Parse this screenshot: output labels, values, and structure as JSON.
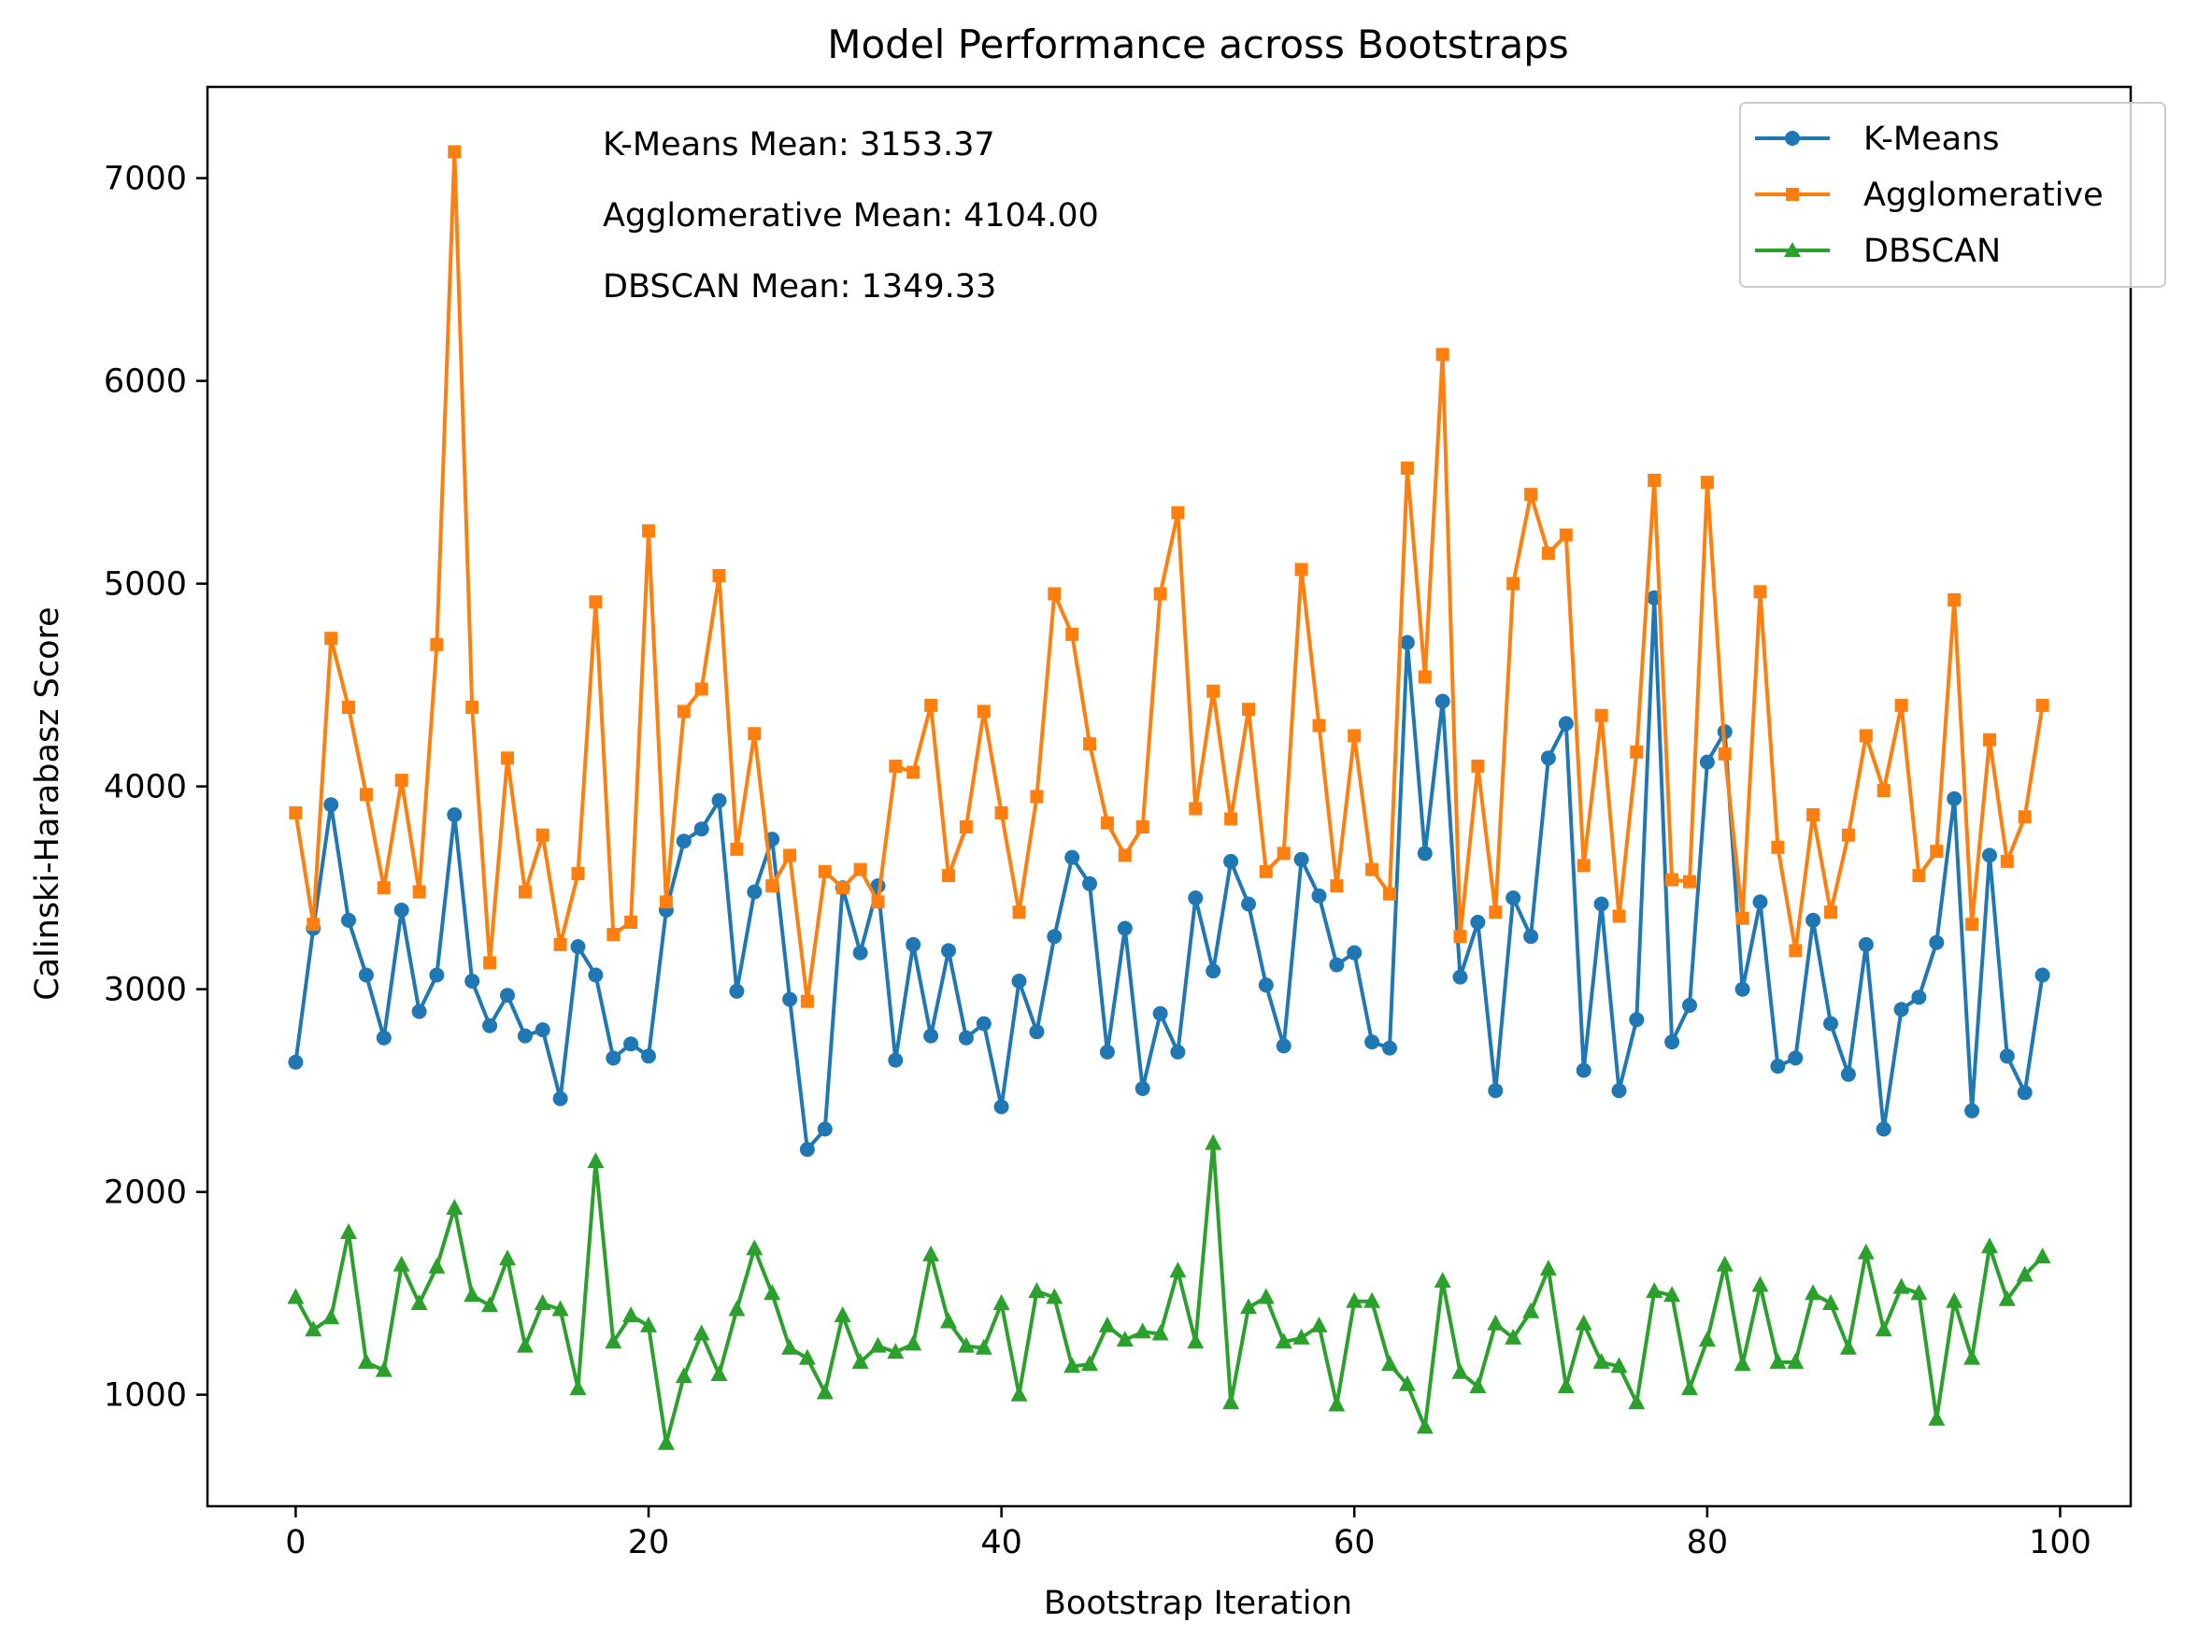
{
  "chart_data": {
    "type": "line",
    "title": "Model Performance across Bootstraps",
    "xlabel": "Bootstrap Iteration",
    "ylabel": "Calinski-Harabasz Score",
    "xlim": [
      -5,
      104
    ],
    "ylim": [
      450,
      7450
    ],
    "xticks": [
      0,
      20,
      40,
      60,
      80,
      100
    ],
    "yticks": [
      1000,
      2000,
      3000,
      4000,
      5000,
      6000,
      7000
    ],
    "grid": false,
    "legend_position": "top-right",
    "annotations": [
      "K-Means Mean: 3153.37",
      "Agglomerative Mean: 4104.00",
      "DBSCAN Mean: 1349.33"
    ],
    "series": [
      {
        "name": "K-Means",
        "color": "#1f77b4",
        "marker": "circle",
        "values": [
          2640,
          3300,
          3910,
          3340,
          3070,
          2760,
          3390,
          2890,
          3070,
          3860,
          3040,
          2820,
          2970,
          2770,
          2800,
          2460,
          3210,
          3070,
          2660,
          2730,
          2670,
          3390,
          3730,
          3790,
          3930,
          2990,
          3480,
          3740,
          2950,
          2210,
          2310,
          3500,
          3180,
          3510,
          2650,
          3220,
          2770,
          3190,
          2760,
          2830,
          2420,
          3040,
          2790,
          3260,
          3650,
          3520,
          2690,
          3300,
          2510,
          2880,
          2690,
          3450,
          3090,
          3630,
          3420,
          3020,
          2720,
          3640,
          3460,
          3120,
          3180,
          2740,
          2710,
          4710,
          3670,
          4420,
          3060,
          3330,
          2500,
          3450,
          3260,
          4140,
          4310,
          2600,
          3420,
          2500,
          2850,
          4930,
          2740,
          2920,
          4120,
          4270,
          3000,
          3430,
          2620,
          2660,
          3340,
          2830,
          2580,
          3220,
          2310,
          2900,
          2960,
          3230,
          3940,
          2400,
          3660,
          2670,
          2490,
          3070
        ]
      },
      {
        "name": "Agglomerative",
        "color": "#ff7f0e",
        "marker": "square",
        "values": [
          3870,
          3320,
          4730,
          4390,
          3960,
          3500,
          4030,
          3480,
          4700,
          7130,
          4390,
          3130,
          4140,
          3480,
          3760,
          3220,
          3570,
          4910,
          3270,
          3330,
          5260,
          3430,
          4370,
          4480,
          5040,
          3690,
          4260,
          3510,
          3660,
          2940,
          3580,
          3500,
          3590,
          3430,
          4100,
          4070,
          4400,
          3560,
          3800,
          4370,
          3870,
          3380,
          3950,
          4950,
          4750,
          4210,
          3820,
          3660,
          3800,
          4950,
          5350,
          3890,
          4470,
          3840,
          4380,
          3580,
          3670,
          5070,
          4300,
          3510,
          4250,
          3590,
          3470,
          5570,
          4540,
          6130,
          3260,
          4100,
          3380,
          5000,
          5440,
          5150,
          5240,
          3610,
          4350,
          3360,
          4170,
          5510,
          3540,
          3530,
          5500,
          4160,
          3350,
          4960,
          3700,
          3190,
          3860,
          3380,
          3760,
          4250,
          3980,
          4400,
          3560,
          3680,
          4920,
          3320,
          4230,
          3630,
          3850,
          4400
        ]
      },
      {
        "name": "DBSCAN",
        "color": "#2ca02c",
        "marker": "triangle",
        "values": [
          1480,
          1320,
          1380,
          1800,
          1160,
          1120,
          1640,
          1450,
          1630,
          1920,
          1490,
          1440,
          1670,
          1240,
          1450,
          1420,
          1030,
          2150,
          1260,
          1390,
          1340,
          760,
          1090,
          1300,
          1100,
          1420,
          1720,
          1500,
          1230,
          1180,
          1010,
          1390,
          1160,
          1240,
          1210,
          1250,
          1690,
          1360,
          1240,
          1230,
          1450,
          1000,
          1510,
          1480,
          1140,
          1150,
          1340,
          1270,
          1310,
          1300,
          1610,
          1260,
          2240,
          960,
          1430,
          1480,
          1260,
          1280,
          1340,
          950,
          1460,
          1460,
          1150,
          1050,
          840,
          1560,
          1110,
          1040,
          1350,
          1280,
          1410,
          1620,
          1040,
          1350,
          1160,
          1140,
          960,
          1510,
          1490,
          1030,
          1270,
          1640,
          1150,
          1540,
          1160,
          1160,
          1500,
          1450,
          1230,
          1700,
          1320,
          1530,
          1500,
          880,
          1460,
          1180,
          1730,
          1470,
          1590,
          1680
        ]
      }
    ]
  }
}
